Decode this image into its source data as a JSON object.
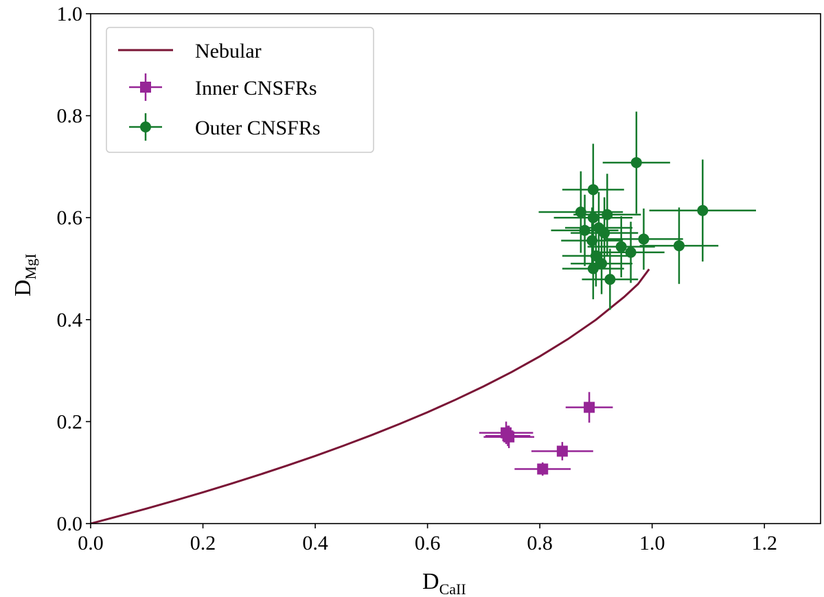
{
  "chart_data": {
    "type": "scatter",
    "xlim": [
      0.0,
      1.3
    ],
    "ylim": [
      0.0,
      1.0
    ],
    "xticks": [
      "0.0",
      "0.2",
      "0.4",
      "0.6",
      "0.8",
      "1.0",
      "1.2"
    ],
    "xtick_values": [
      0.0,
      0.2,
      0.4,
      0.6,
      0.8,
      1.0,
      1.2
    ],
    "yticks": [
      "0.0",
      "0.2",
      "0.4",
      "0.6",
      "0.8",
      "1.0"
    ],
    "ytick_values": [
      0.0,
      0.2,
      0.4,
      0.6,
      0.8,
      1.0
    ],
    "xlabel": {
      "main": "D",
      "sub": "CaII"
    },
    "ylabel": {
      "main": "D",
      "sub": "MgI"
    },
    "legend_placement": "top-left",
    "grid": false,
    "series": [
      {
        "name": "Nebular",
        "kind": "line",
        "color": "#7a1536",
        "x": [
          0.0,
          0.05,
          0.1,
          0.15,
          0.2,
          0.25,
          0.3,
          0.35,
          0.4,
          0.45,
          0.5,
          0.55,
          0.6,
          0.65,
          0.7,
          0.75,
          0.8,
          0.85,
          0.9,
          0.95,
          0.975,
          0.9946
        ],
        "y": [
          0.0,
          0.0146,
          0.0296,
          0.0452,
          0.0614,
          0.0782,
          0.0956,
          0.1138,
          0.1327,
          0.1526,
          0.1734,
          0.1953,
          0.2184,
          0.243,
          0.2692,
          0.2974,
          0.328,
          0.3618,
          0.3998,
          0.4444,
          0.4699,
          0.499
        ]
      },
      {
        "name": "Inner CNSFRs",
        "kind": "errorbar",
        "marker": "square",
        "color": "#962596",
        "points": [
          {
            "x": 0.74,
            "y": 0.178,
            "xerr": 0.048,
            "yerr": 0.022
          },
          {
            "x": 0.745,
            "y": 0.17,
            "xerr": 0.045,
            "yerr": 0.022
          },
          {
            "x": 0.743,
            "y": 0.172,
            "xerr": 0.04,
            "yerr": 0.02
          },
          {
            "x": 0.805,
            "y": 0.107,
            "xerr": 0.05,
            "yerr": 0.013
          },
          {
            "x": 0.84,
            "y": 0.142,
            "xerr": 0.055,
            "yerr": 0.018
          },
          {
            "x": 0.888,
            "y": 0.228,
            "xerr": 0.042,
            "yerr": 0.03
          }
        ]
      },
      {
        "name": "Outer CNSFRs",
        "kind": "errorbar",
        "marker": "circle",
        "color": "#157a2c",
        "points": [
          {
            "x": 0.895,
            "y": 0.655,
            "xerr": 0.055,
            "yerr": 0.09
          },
          {
            "x": 0.972,
            "y": 0.708,
            "xerr": 0.06,
            "yerr": 0.1
          },
          {
            "x": 1.09,
            "y": 0.614,
            "xerr": 0.095,
            "yerr": 0.1
          },
          {
            "x": 0.873,
            "y": 0.611,
            "xerr": 0.075,
            "yerr": 0.08
          },
          {
            "x": 0.895,
            "y": 0.6,
            "xerr": 0.07,
            "yerr": 0.075
          },
          {
            "x": 0.92,
            "y": 0.606,
            "xerr": 0.06,
            "yerr": 0.08
          },
          {
            "x": 0.88,
            "y": 0.575,
            "xerr": 0.06,
            "yerr": 0.07
          },
          {
            "x": 0.905,
            "y": 0.58,
            "xerr": 0.06,
            "yerr": 0.07
          },
          {
            "x": 0.915,
            "y": 0.57,
            "xerr": 0.06,
            "yerr": 0.07
          },
          {
            "x": 0.893,
            "y": 0.555,
            "xerr": 0.055,
            "yerr": 0.065
          },
          {
            "x": 0.945,
            "y": 0.543,
            "xerr": 0.06,
            "yerr": 0.06
          },
          {
            "x": 0.985,
            "y": 0.558,
            "xerr": 0.07,
            "yerr": 0.06
          },
          {
            "x": 0.962,
            "y": 0.532,
            "xerr": 0.06,
            "yerr": 0.06
          },
          {
            "x": 1.048,
            "y": 0.545,
            "xerr": 0.07,
            "yerr": 0.075
          },
          {
            "x": 0.9,
            "y": 0.525,
            "xerr": 0.06,
            "yerr": 0.06
          },
          {
            "x": 0.91,
            "y": 0.51,
            "xerr": 0.055,
            "yerr": 0.06
          },
          {
            "x": 0.895,
            "y": 0.5,
            "xerr": 0.055,
            "yerr": 0.06
          },
          {
            "x": 0.925,
            "y": 0.479,
            "xerr": 0.05,
            "yerr": 0.06
          }
        ]
      }
    ]
  },
  "legend": {
    "nebular_label": "Nebular",
    "inner_label": "Inner CNSFRs",
    "outer_label": "Outer CNSFRs"
  }
}
